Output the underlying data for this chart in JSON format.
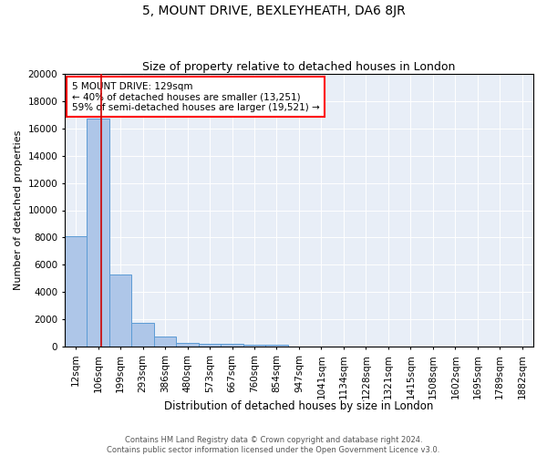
{
  "title": "5, MOUNT DRIVE, BEXLEYHEATH, DA6 8JR",
  "subtitle": "Size of property relative to detached houses in London",
  "xlabel": "Distribution of detached houses by size in London",
  "ylabel": "Number of detached properties",
  "footnote1": "Contains HM Land Registry data © Crown copyright and database right 2024.",
  "footnote2": "Contains public sector information licensed under the Open Government Licence v3.0.",
  "bin_labels": [
    "12sqm",
    "106sqm",
    "199sqm",
    "293sqm",
    "386sqm",
    "480sqm",
    "573sqm",
    "667sqm",
    "760sqm",
    "854sqm",
    "947sqm",
    "1041sqm",
    "1134sqm",
    "1228sqm",
    "1321sqm",
    "1415sqm",
    "1508sqm",
    "1602sqm",
    "1695sqm",
    "1789sqm",
    "1882sqm"
  ],
  "bar_heights": [
    8100,
    16700,
    5300,
    1750,
    750,
    310,
    230,
    200,
    175,
    130,
    0,
    0,
    0,
    0,
    0,
    0,
    0,
    0,
    0,
    0,
    0
  ],
  "bar_color": "#aec6e8",
  "bar_edge_color": "#5b9bd5",
  "vline_x": 1.15,
  "vline_color": "#cc0000",
  "annotation_box_text": "5 MOUNT DRIVE: 129sqm\n← 40% of detached houses are smaller (13,251)\n59% of semi-detached houses are larger (19,521) →",
  "ylim": [
    0,
    20000
  ],
  "yticks": [
    0,
    2000,
    4000,
    6000,
    8000,
    10000,
    12000,
    14000,
    16000,
    18000,
    20000
  ],
  "background_color": "#e8eef7",
  "title_fontsize": 10,
  "subtitle_fontsize": 9,
  "xlabel_fontsize": 8.5,
  "ylabel_fontsize": 8,
  "tick_fontsize": 7.5,
  "annotation_fontsize": 7.5,
  "footnote_fontsize": 6
}
